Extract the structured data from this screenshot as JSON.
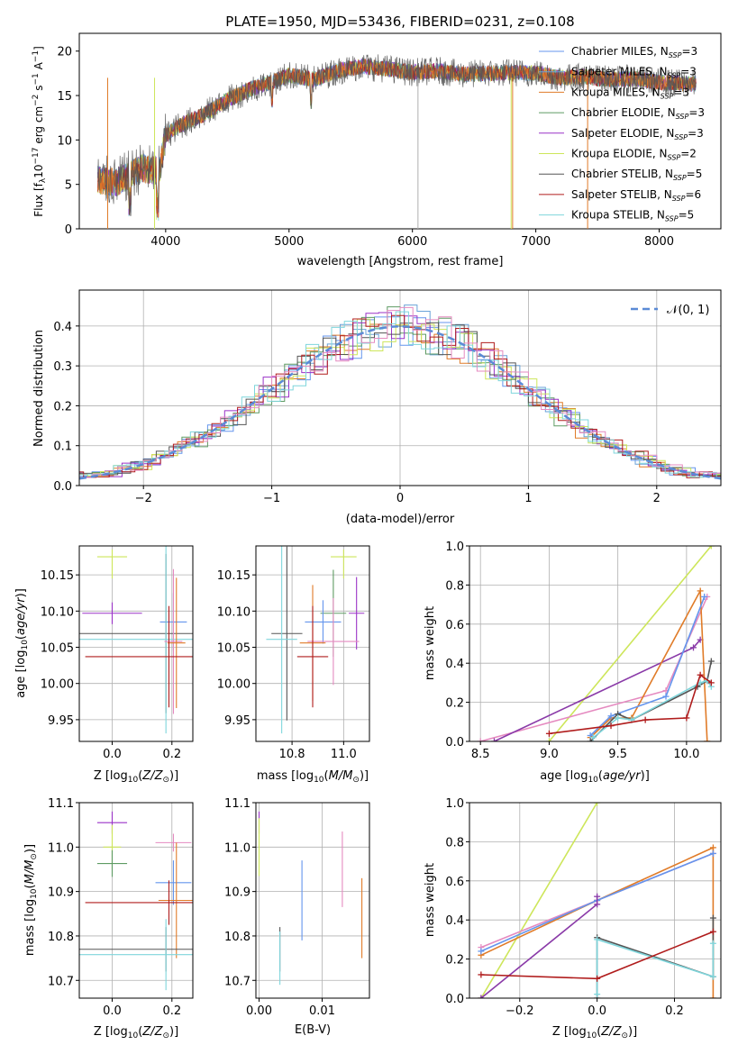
{
  "figure": {
    "title": "PLATE=1950, MJD=53436, FIBERID=0231, z=0.108"
  },
  "colors": {
    "chabrier_miles": "#6495ed",
    "salpeter_miles": "#6aa2d8",
    "kroupa_miles": "#e07b28",
    "chabrier_elodie": "#5e9b63",
    "salpeter_elodie": "#9a32c7",
    "kroupa_elodie": "#cde65a",
    "chabrier_stelib": "#555555",
    "salpeter_stelib": "#b01c1c",
    "kroupa_stelib": "#7fd6dc",
    "pink": "#e58ac0",
    "purple_line": "#8a3aa8",
    "gauss": "#5b8bd6"
  },
  "chart_data": [
    {
      "id": "spectrum",
      "type": "line",
      "xlabel": "wavelength [Angstrom, rest frame]",
      "ylabel": "Flux [f",
      "xlim": [
        3300,
        8500
      ],
      "ylim": [
        0,
        22
      ],
      "xticks": [
        "4000",
        "5000",
        "6000",
        "7000",
        "8000"
      ],
      "yticks": [
        "0",
        "5",
        "10",
        "15",
        "20"
      ],
      "legend_position": "right",
      "legend": [
        {
          "name": "Chabrier MILES, N",
          "n": "3",
          "color": "#6495ed"
        },
        {
          "name": "Salpeter MILES, N",
          "n": "3",
          "color": "#6aa2d8"
        },
        {
          "name": "Kroupa MILES, N",
          "n": "3",
          "color": "#e07b28"
        },
        {
          "name": "Chabrier ELODIE, N",
          "n": "3",
          "color": "#5e9b63"
        },
        {
          "name": "Salpeter ELODIE, N",
          "n": "3",
          "color": "#9a32c7"
        },
        {
          "name": "Kroupa ELODIE, N",
          "n": "2",
          "color": "#cde65a"
        },
        {
          "name": "Chabrier STELIB, N",
          "n": "5",
          "color": "#555555"
        },
        {
          "name": "Salpeter STELIB, N",
          "n": "6",
          "color": "#b01c1c"
        },
        {
          "name": "Kroupa STELIB, N",
          "n": "5",
          "color": "#7fd6dc"
        }
      ],
      "continuum": [
        [
          3450,
          5.5
        ],
        [
          3600,
          5.2
        ],
        [
          3800,
          6.8
        ],
        [
          3950,
          6.5
        ],
        [
          4000,
          10.5
        ],
        [
          4100,
          11.5
        ],
        [
          4300,
          12.8
        ],
        [
          4500,
          14.5
        ],
        [
          4700,
          15.8
        ],
        [
          4860,
          16.5
        ],
        [
          5000,
          17.3
        ],
        [
          5200,
          16.8
        ],
        [
          5400,
          17.8
        ],
        [
          5600,
          18.3
        ],
        [
          5800,
          18.0
        ],
        [
          6000,
          17.6
        ],
        [
          6200,
          17.8
        ],
        [
          6400,
          17.4
        ],
        [
          6600,
          17.5
        ],
        [
          6800,
          17.6
        ],
        [
          7000,
          17.5
        ],
        [
          7200,
          17.0
        ],
        [
          7400,
          17.1
        ],
        [
          7600,
          16.8
        ],
        [
          7800,
          16.9
        ],
        [
          8000,
          16.5
        ],
        [
          8300,
          16.3
        ]
      ]
    },
    {
      "id": "residuals",
      "type": "line",
      "xlabel": "(data-model)/error",
      "ylabel": "Normed distribution",
      "xlim": [
        -2.5,
        2.5
      ],
      "ylim": [
        0,
        0.49
      ],
      "xticks": [
        -2,
        -1,
        0,
        1,
        2
      ],
      "yticks": [
        0.0,
        0.1,
        0.2,
        0.3,
        0.4
      ],
      "grid": true,
      "legend_position": "top-right",
      "legend": [
        {
          "name": "𝒩(0, 1)",
          "color": "#5b8bd6"
        }
      ]
    },
    {
      "id": "age_vs_Z",
      "type": "scatter",
      "xlabel": "Z [log",
      "ylabel": "age  [log",
      "xlim": [
        -0.11,
        0.27
      ],
      "ylim": [
        9.92,
        10.19
      ],
      "xticks": [
        0.0,
        0.2
      ],
      "yticks": [
        9.95,
        10.0,
        10.05,
        10.1,
        10.15
      ],
      "grid": true,
      "points": [
        {
          "x": 0.0,
          "y": 10.175,
          "xerr": 0.05,
          "yerr": [
            0.03,
            0.01
          ],
          "color": "#cde65a"
        },
        {
          "x": 0.0,
          "y": 10.097,
          "xerr": 0.1,
          "yerr": 0.015,
          "color": "#9a32c7"
        },
        {
          "x": 0.205,
          "y": 10.085,
          "xerr": 0.045,
          "yerr": 0.04,
          "color": "#6495ed"
        },
        {
          "x": 0.18,
          "y": 10.069,
          "xerr": 0.29,
          "yerr": 0.11,
          "color": "#555555"
        },
        {
          "x": 0.18,
          "y": 10.061,
          "xerr": 0.29,
          "yerr": 0.13,
          "color": "#7fd6dc"
        },
        {
          "x": 0.205,
          "y": 10.058,
          "xerr": 0.03,
          "yerr": 0.1,
          "color": "#e58ac0"
        },
        {
          "x": 0.215,
          "y": 10.056,
          "xerr": 0.03,
          "yerr": 0.09,
          "color": "#e07b28"
        },
        {
          "x": 0.19,
          "y": 10.037,
          "xerr": 0.28,
          "yerr": 0.07,
          "color": "#b01c1c"
        }
      ]
    },
    {
      "id": "age_vs_mass",
      "type": "scatter",
      "xlabel": "mass [log",
      "ylabel": "",
      "xlim": [
        10.66,
        11.1
      ],
      "ylim": [
        9.92,
        10.19
      ],
      "xticks": [
        10.8,
        11.0
      ],
      "yticks": [
        9.95,
        10.0,
        10.05,
        10.1,
        10.15
      ],
      "grid": true,
      "points": [
        {
          "x": 11.0,
          "y": 10.175,
          "xerr": 0.05,
          "yerr": [
            0.03,
            0.01
          ],
          "color": "#cde65a"
        },
        {
          "x": 11.05,
          "y": 10.097,
          "xerr": 0.03,
          "yerr": 0.05,
          "color": "#9a32c7"
        },
        {
          "x": 10.96,
          "y": 10.097,
          "xerr": 0.05,
          "yerr": 0.06,
          "color": "#5e9b63"
        },
        {
          "x": 10.92,
          "y": 10.085,
          "xerr": 0.07,
          "yerr": 0.03,
          "color": "#6495ed"
        },
        {
          "x": 10.78,
          "y": 10.069,
          "xerr": 0.06,
          "yerr": 0.12,
          "color": "#555555"
        },
        {
          "x": 10.76,
          "y": 10.061,
          "xerr": 0.06,
          "yerr": 0.13,
          "color": "#7fd6dc"
        },
        {
          "x": 10.96,
          "y": 10.058,
          "xerr": 0.1,
          "yerr": 0.06,
          "color": "#e58ac0"
        },
        {
          "x": 10.88,
          "y": 10.056,
          "xerr": 0.05,
          "yerr": 0.08,
          "color": "#e07b28"
        },
        {
          "x": 10.88,
          "y": 10.037,
          "xerr": 0.06,
          "yerr": 0.07,
          "color": "#b01c1c"
        }
      ]
    },
    {
      "id": "massweight_vs_age",
      "type": "line",
      "xlabel": "age  [log",
      "ylabel": "mass weight",
      "xlim": [
        8.42,
        10.25
      ],
      "ylim": [
        0.0,
        1.0
      ],
      "xticks": [
        8.5,
        9.0,
        9.5,
        10.0
      ],
      "yticks": [
        0.0,
        0.2,
        0.4,
        0.6,
        0.8,
        1.0
      ],
      "grid": true,
      "series": [
        {
          "color": "#cde65a",
          "x": [
            9.0,
            10.18
          ],
          "y": [
            0.0,
            1.0
          ]
        },
        {
          "color": "#e58ac0",
          "x": [
            8.5,
            9.85,
            10.15
          ],
          "y": [
            0.0,
            0.26,
            0.74
          ]
        },
        {
          "color": "#8a3aa8",
          "x": [
            8.6,
            10.05,
            10.1
          ],
          "y": [
            0.0,
            0.48,
            0.52
          ]
        },
        {
          "color": "#e07b28",
          "x": [
            9.3,
            9.45,
            9.6,
            10.1,
            10.15,
            10.15
          ],
          "y": [
            0.02,
            0.12,
            0.12,
            0.77,
            0.0,
            0.0
          ]
        },
        {
          "color": "#6495ed",
          "x": [
            9.3,
            9.45,
            9.85,
            10.13
          ],
          "y": [
            0.03,
            0.13,
            0.23,
            0.74
          ]
        },
        {
          "color": "#555555",
          "x": [
            9.3,
            9.5,
            9.6,
            10.08,
            10.15,
            10.18
          ],
          "y": [
            0.0,
            0.14,
            0.11,
            0.28,
            0.31,
            0.41
          ]
        },
        {
          "color": "#7fd6dc",
          "x": [
            9.32,
            9.5,
            9.6,
            10.1,
            10.15,
            10.18
          ],
          "y": [
            0.02,
            0.12,
            0.11,
            0.3,
            0.31,
            0.28
          ]
        },
        {
          "color": "#b01c1c",
          "x": [
            9.0,
            9.45,
            9.7,
            10.0,
            10.1,
            10.18
          ],
          "y": [
            0.04,
            0.08,
            0.11,
            0.12,
            0.34,
            0.3
          ]
        }
      ]
    },
    {
      "id": "mass_vs_Z",
      "type": "scatter",
      "xlabel": "Z [log",
      "ylabel": "mass [log",
      "xlim": [
        -0.11,
        0.27
      ],
      "ylim": [
        10.66,
        11.1
      ],
      "xticks": [
        0.0,
        0.2
      ],
      "yticks": [
        10.7,
        10.8,
        10.9,
        11.0,
        11.1
      ],
      "grid": true,
      "points": [
        {
          "x": 0.0,
          "y": 11.055,
          "xerr": 0.05,
          "yerr": 0.025,
          "color": "#9a32c7"
        },
        {
          "x": 0.0,
          "y": 11.0,
          "xerr": 0.03,
          "yerr": 0.05,
          "color": "#cde65a"
        },
        {
          "x": 0.205,
          "y": 11.01,
          "xerr": 0.06,
          "yerr": 0.02,
          "color": "#e58ac0"
        },
        {
          "x": 0.0,
          "y": 10.963,
          "xerr": 0.05,
          "yerr": 0.03,
          "color": "#5e9b63"
        },
        {
          "x": 0.205,
          "y": 10.92,
          "xerr": 0.06,
          "yerr": 0.05,
          "color": "#6495ed"
        },
        {
          "x": 0.215,
          "y": 10.88,
          "xerr": 0.06,
          "yerr": 0.13,
          "color": "#e07b28"
        },
        {
          "x": 0.19,
          "y": 10.875,
          "xerr": 0.28,
          "yerr": 0.05,
          "color": "#b01c1c"
        },
        {
          "x": 0.18,
          "y": 10.77,
          "xerr": 0.29,
          "yerr": 0.05,
          "color": "#555555"
        },
        {
          "x": 0.18,
          "y": 10.758,
          "xerr": 0.29,
          "yerr": 0.08,
          "color": "#7fd6dc"
        }
      ]
    },
    {
      "id": "mass_vs_ebv",
      "type": "scatter",
      "xlabel": "E(B-V)",
      "ylabel": "",
      "xlim": [
        -0.0005,
        0.0175
      ],
      "ylim": [
        10.66,
        11.1
      ],
      "xticks": [
        0.0,
        0.01
      ],
      "yticks": [
        10.7,
        10.8,
        10.9,
        11.0,
        11.1
      ],
      "grid": true,
      "points": [
        {
          "x": 0.0,
          "y": 11.055,
          "yerr": 0.025,
          "color": "#9a32c7"
        },
        {
          "x": 0.0,
          "y": 11.0,
          "yerr": 0.065,
          "color": "#cde65a"
        },
        {
          "x": 0.0033,
          "y": 10.77,
          "yerr": 0.05,
          "color": "#555555"
        },
        {
          "x": 0.0033,
          "y": 10.75,
          "yerr": 0.06,
          "color": "#7fd6dc"
        },
        {
          "x": 0.0068,
          "y": 10.88,
          "yerr": 0.09,
          "color": "#6495ed"
        },
        {
          "x": 0.0132,
          "y": 10.95,
          "yerr": 0.085,
          "color": "#e58ac0"
        },
        {
          "x": 0.0163,
          "y": 10.84,
          "yerr": 0.09,
          "color": "#e07b28"
        }
      ]
    },
    {
      "id": "massweight_vs_Z",
      "type": "line",
      "xlabel": "Z [log",
      "ylabel": "mass weight",
      "xlim": [
        -0.33,
        0.32
      ],
      "ylim": [
        0.0,
        1.0
      ],
      "xticks": [
        -0.2,
        0.0,
        0.2
      ],
      "yticks": [
        0.0,
        0.2,
        0.4,
        0.6,
        0.8,
        1.0
      ],
      "grid": true,
      "series": [
        {
          "color": "#cde65a",
          "x": [
            -0.3,
            0.0
          ],
          "y": [
            0.0,
            1.0
          ]
        },
        {
          "color": "#e58ac0",
          "x": [
            -0.3,
            0.0,
            0.3
          ],
          "y": [
            0.26,
            0.5,
            0.74
          ]
        },
        {
          "color": "#e07b28",
          "x": [
            -0.3,
            0.0,
            0.3,
            0.3
          ],
          "y": [
            0.22,
            0.5,
            0.77,
            0.0
          ]
        },
        {
          "color": "#6495ed",
          "x": [
            -0.3,
            0.0,
            0.3
          ],
          "y": [
            0.24,
            0.5,
            0.74
          ]
        },
        {
          "color": "#8a3aa8",
          "x": [
            -0.3,
            0.0,
            0.0
          ],
          "y": [
            0.0,
            0.48,
            0.52
          ]
        },
        {
          "color": "#555555",
          "x": [
            0.0,
            0.0,
            0.3,
            0.3
          ],
          "y": [
            0.0,
            0.31,
            0.11,
            0.41
          ]
        },
        {
          "color": "#7fd6dc",
          "x": [
            0.0,
            0.0,
            0.3,
            0.3
          ],
          "y": [
            0.02,
            0.3,
            0.11,
            0.28
          ]
        },
        {
          "color": "#b01c1c",
          "x": [
            -0.3,
            0.0,
            0.3
          ],
          "y": [
            0.12,
            0.1,
            0.34
          ]
        }
      ]
    }
  ]
}
